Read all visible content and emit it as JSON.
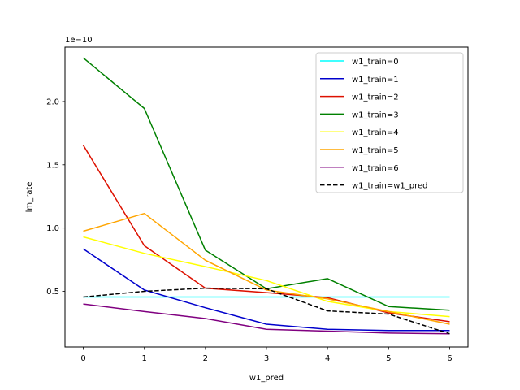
{
  "chart_data": {
    "type": "line",
    "title": "",
    "xlabel": "w1_pred",
    "ylabel": "lm_rate",
    "y_scale_label": "1e−10",
    "x": [
      0,
      1,
      2,
      3,
      4,
      5,
      6
    ],
    "xlim": [
      -0.3,
      6.3
    ],
    "ylim": [
      0.06,
      2.43
    ],
    "x_ticks": [
      0,
      1,
      2,
      3,
      4,
      5,
      6
    ],
    "x_tick_labels": [
      "0",
      "1",
      "2",
      "3",
      "4",
      "5",
      "6"
    ],
    "y_ticks": [
      0.5,
      1.0,
      1.5,
      2.0
    ],
    "y_tick_labels": [
      "0.5",
      "1.0",
      "1.5",
      "2.0"
    ],
    "grid": false,
    "legend_position": "upper-right",
    "series": [
      {
        "name": "w1_train=0",
        "color": "#00ffff",
        "dash": "solid",
        "values": [
          0.455,
          0.455,
          0.455,
          0.455,
          0.455,
          0.455,
          0.455
        ]
      },
      {
        "name": "w1_train=1",
        "color": "#0000cc",
        "dash": "solid",
        "values": [
          0.835,
          0.51,
          0.37,
          0.24,
          0.2,
          0.19,
          0.19
        ]
      },
      {
        "name": "w1_train=2",
        "color": "#dd1100",
        "dash": "solid",
        "values": [
          1.655,
          0.86,
          0.525,
          0.49,
          0.45,
          0.33,
          0.26
        ]
      },
      {
        "name": "w1_train=3",
        "color": "#008000",
        "dash": "solid",
        "values": [
          2.345,
          1.945,
          0.825,
          0.52,
          0.6,
          0.38,
          0.35
        ]
      },
      {
        "name": "w1_train=4",
        "color": "#ffff00",
        "dash": "solid",
        "values": [
          0.93,
          0.8,
          0.695,
          0.585,
          0.42,
          0.34,
          0.3
        ]
      },
      {
        "name": "w1_train=5",
        "color": "#ffa500",
        "dash": "solid",
        "values": [
          0.975,
          1.115,
          0.745,
          0.51,
          0.44,
          0.34,
          0.24
        ]
      },
      {
        "name": "w1_train=6",
        "color": "#800080",
        "dash": "solid",
        "values": [
          0.4,
          0.34,
          0.285,
          0.2,
          0.185,
          0.17,
          0.165
        ]
      },
      {
        "name": "w1_train=w1_pred",
        "color": "#000000",
        "dash": "dashed",
        "values": [
          0.455,
          0.5,
          0.525,
          0.52,
          0.345,
          0.32,
          0.165
        ]
      }
    ]
  }
}
